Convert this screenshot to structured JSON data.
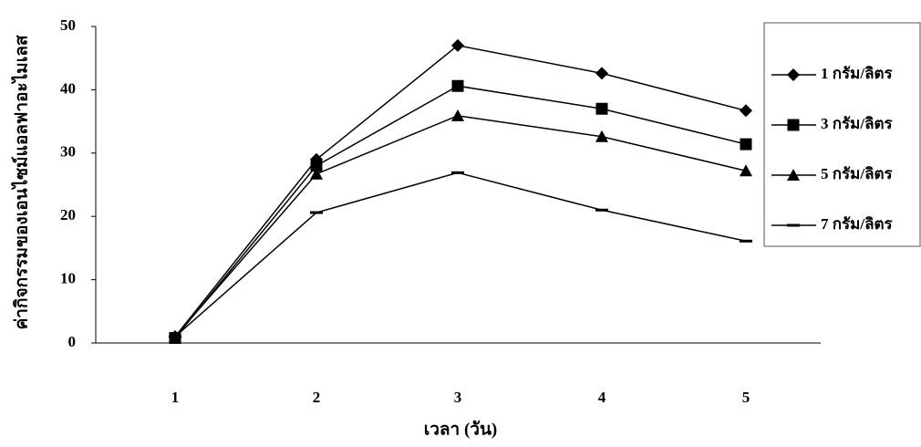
{
  "chart_data": {
    "type": "line",
    "x_label": "เวลา (วัน)",
    "y_label": "ค่ากิจกรรมของเอนไซม์แอลฟาอะไมเลส",
    "categories": [
      "1",
      "2",
      "3",
      "4",
      "5"
    ],
    "ylim": [
      0,
      50
    ],
    "yticks": [
      0,
      10,
      20,
      30,
      40,
      50
    ],
    "series": [
      {
        "name": "1 กรัม/ลิตร",
        "color": "#000000",
        "marker": "diamond",
        "values": [
          1,
          29,
          47,
          42.6,
          36.7
        ]
      },
      {
        "name": "3 กรัม/ลิตร",
        "color": "#000000",
        "marker": "square",
        "values": [
          0.8,
          28,
          40.6,
          37,
          31.4
        ]
      },
      {
        "name": "5 กรัม/ลิตร",
        "color": "#000000",
        "marker": "triangle",
        "values": [
          1,
          26.7,
          35.9,
          32.6,
          27.2
        ]
      },
      {
        "name": "7 กรัม/ลิตร",
        "color": "#000000",
        "marker": "dash",
        "values": [
          1,
          20.6,
          26.9,
          21,
          16.1
        ]
      }
    ]
  }
}
